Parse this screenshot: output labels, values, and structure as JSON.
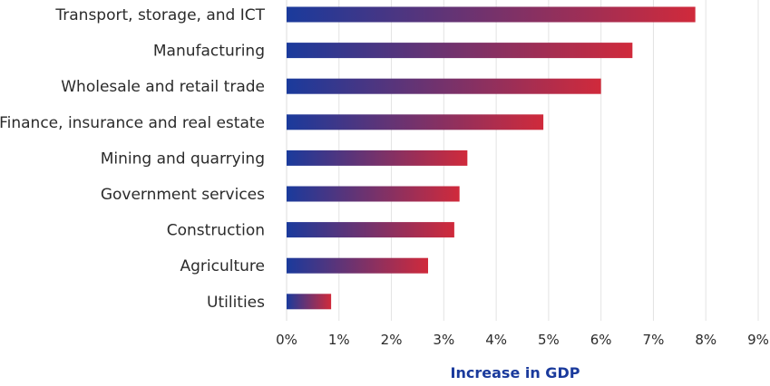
{
  "colors": {
    "bar_start": "#1a3a9c",
    "bar_end": "#d02a3b",
    "axis_title": "#1a3a9c",
    "grid": "#e3e3e3"
  },
  "chart_data": {
    "type": "bar",
    "orientation": "horizontal",
    "title": "",
    "xlabel": "Increase in GDP",
    "ylabel": "",
    "categories": [
      "Transport, storage, and ICT",
      "Manufacturing",
      "Wholesale and retail trade",
      "Finance, insurance and real estate",
      "Mining and quarrying",
      "Government services",
      "Construction",
      "Agriculture",
      "Utilities"
    ],
    "values": [
      7.8,
      6.6,
      6.0,
      4.9,
      3.45,
      3.3,
      3.2,
      2.7,
      0.85
    ],
    "xlim": [
      0,
      9
    ],
    "ticks": [
      "0%",
      "1%",
      "2%",
      "3%",
      "4%",
      "5%",
      "6%",
      "7%",
      "8%",
      "9%"
    ],
    "grid": "vertical",
    "legend": "none"
  }
}
